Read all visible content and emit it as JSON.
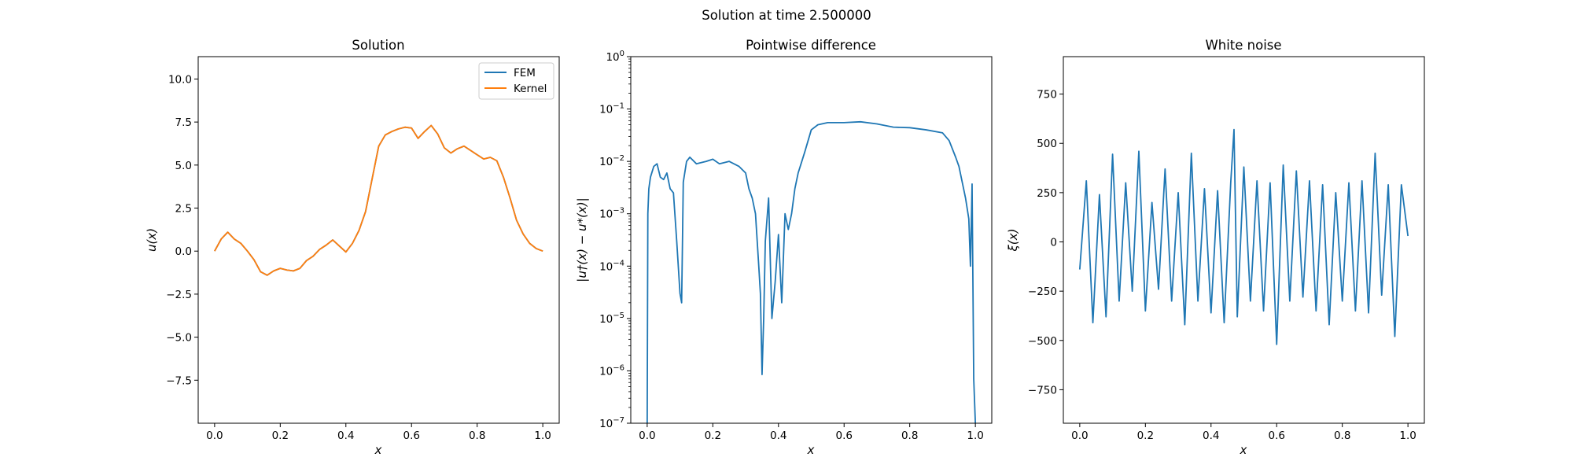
{
  "figure": {
    "suptitle": "Solution at time 2.500000"
  },
  "colors": {
    "fem": "#1f77b4",
    "kernel": "#ff7f0e",
    "series": "#1f77b4",
    "axes": "#000000",
    "background": "#ffffff"
  },
  "chart_data": [
    {
      "type": "line",
      "title": "Solution",
      "xlabel": "x",
      "ylabel": "u(x)",
      "xlim": [
        -0.05,
        1.05
      ],
      "ylim": [
        -10,
        11.3
      ],
      "grid": false,
      "legend_position": "top-right",
      "xticks": [
        0.0,
        0.2,
        0.4,
        0.6,
        0.8,
        1.0
      ],
      "xtick_labels": [
        "0.0",
        "0.2",
        "0.4",
        "0.6",
        "0.8",
        "1.0"
      ],
      "yticks": [
        -7.5,
        -5.0,
        -2.5,
        0.0,
        2.5,
        5.0,
        7.5,
        10.0
      ],
      "ytick_labels": [
        "−7.5",
        "−5.0",
        "−2.5",
        "0.0",
        "2.5",
        "5.0",
        "7.5",
        "10.0"
      ],
      "series": [
        {
          "name": "FEM",
          "color": "#1f77b4",
          "x": [
            0.0,
            0.02,
            0.04,
            0.06,
            0.08,
            0.1,
            0.12,
            0.14,
            0.16,
            0.18,
            0.2,
            0.22,
            0.24,
            0.26,
            0.28,
            0.3,
            0.32,
            0.34,
            0.36,
            0.38,
            0.4,
            0.42,
            0.44,
            0.46,
            0.48,
            0.5,
            0.52,
            0.54,
            0.56,
            0.58,
            0.6,
            0.62,
            0.64,
            0.66,
            0.68,
            0.7,
            0.72,
            0.74,
            0.76,
            0.78,
            0.8,
            0.82,
            0.84,
            0.86,
            0.88,
            0.9,
            0.92,
            0.94,
            0.96,
            0.98,
            1.0
          ],
          "values": [
            0.0,
            0.7,
            1.1,
            0.7,
            0.45,
            0.0,
            -0.5,
            -1.2,
            -1.4,
            -1.15,
            -1.0,
            -1.1,
            -1.15,
            -1.0,
            -0.55,
            -0.3,
            0.1,
            0.35,
            0.65,
            0.3,
            -0.05,
            0.45,
            1.2,
            2.3,
            4.2,
            6.1,
            6.75,
            6.95,
            7.1,
            7.2,
            7.15,
            6.55,
            6.95,
            7.3,
            6.8,
            6.0,
            5.7,
            5.95,
            6.1,
            5.85,
            5.6,
            5.35,
            5.45,
            5.25,
            4.3,
            3.1,
            1.8,
            1.0,
            0.45,
            0.15,
            0.0
          ]
        },
        {
          "name": "Kernel",
          "color": "#ff7f0e",
          "x": [
            0.0,
            0.02,
            0.04,
            0.06,
            0.08,
            0.1,
            0.12,
            0.14,
            0.16,
            0.18,
            0.2,
            0.22,
            0.24,
            0.26,
            0.28,
            0.3,
            0.32,
            0.34,
            0.36,
            0.38,
            0.4,
            0.42,
            0.44,
            0.46,
            0.48,
            0.5,
            0.52,
            0.54,
            0.56,
            0.58,
            0.6,
            0.62,
            0.64,
            0.66,
            0.68,
            0.7,
            0.72,
            0.74,
            0.76,
            0.78,
            0.8,
            0.82,
            0.84,
            0.86,
            0.88,
            0.9,
            0.92,
            0.94,
            0.96,
            0.98,
            1.0
          ],
          "values": [
            0.0,
            0.7,
            1.1,
            0.7,
            0.45,
            0.0,
            -0.5,
            -1.2,
            -1.4,
            -1.15,
            -1.0,
            -1.1,
            -1.15,
            -1.0,
            -0.55,
            -0.3,
            0.1,
            0.35,
            0.65,
            0.3,
            -0.05,
            0.45,
            1.2,
            2.3,
            4.2,
            6.1,
            6.75,
            6.95,
            7.1,
            7.2,
            7.15,
            6.55,
            6.95,
            7.3,
            6.8,
            6.0,
            5.7,
            5.95,
            6.1,
            5.85,
            5.6,
            5.35,
            5.45,
            5.25,
            4.3,
            3.1,
            1.8,
            1.0,
            0.45,
            0.15,
            0.0
          ]
        }
      ]
    },
    {
      "type": "line",
      "title": "Pointwise difference",
      "xlabel": "x",
      "ylabel": "|u†(x) − u*(x)|",
      "yscale": "log",
      "xlim": [
        -0.05,
        1.05
      ],
      "ylim": [
        1e-07,
        1
      ],
      "grid": false,
      "xticks": [
        0.0,
        0.2,
        0.4,
        0.6,
        0.8,
        1.0
      ],
      "xtick_labels": [
        "0.0",
        "0.2",
        "0.4",
        "0.6",
        "0.8",
        "1.0"
      ],
      "yticks": [
        1e-07,
        1e-06,
        1e-05,
        0.0001,
        0.001,
        0.01,
        0.1,
        1
      ],
      "ytick_labels": [
        {
          "base": "10",
          "exp": "−7"
        },
        {
          "base": "10",
          "exp": "−6"
        },
        {
          "base": "10",
          "exp": "−5"
        },
        {
          "base": "10",
          "exp": "−4"
        },
        {
          "base": "10",
          "exp": "−3"
        },
        {
          "base": "10",
          "exp": "−2"
        },
        {
          "base": "10",
          "exp": "−1"
        },
        {
          "base": "10",
          "exp": "0"
        }
      ],
      "series": [
        {
          "color": "#1f77b4",
          "description_of_shape_ranges": null,
          "x": [
            0.0,
            0.002,
            0.005,
            0.01,
            0.02,
            0.03,
            0.04,
            0.05,
            0.06,
            0.07,
            0.08,
            0.09,
            0.1,
            0.105,
            0.11,
            0.12,
            0.13,
            0.15,
            0.18,
            0.2,
            0.22,
            0.25,
            0.28,
            0.3,
            0.31,
            0.32,
            0.33,
            0.34,
            0.345,
            0.35,
            0.355,
            0.36,
            0.37,
            0.38,
            0.39,
            0.4,
            0.41,
            0.42,
            0.43,
            0.44,
            0.45,
            0.46,
            0.48,
            0.5,
            0.52,
            0.55,
            0.6,
            0.65,
            0.7,
            0.75,
            0.8,
            0.85,
            0.9,
            0.92,
            0.94,
            0.95,
            0.96,
            0.97,
            0.98,
            0.985,
            0.99,
            0.995,
            1.0
          ],
          "values": [
            1e-07,
            0.001,
            0.003,
            0.005,
            0.008,
            0.009,
            0.005,
            0.0045,
            0.006,
            0.003,
            0.0025,
            0.0003,
            3e-05,
            2e-05,
            0.004,
            0.01,
            0.012,
            0.009,
            0.01,
            0.011,
            0.009,
            0.01,
            0.008,
            0.006,
            0.003,
            0.002,
            0.001,
            0.0001,
            3e-05,
            8.5e-07,
            1e-05,
            0.0003,
            0.002,
            1e-05,
            5e-05,
            0.0004,
            2e-05,
            0.001,
            0.0005,
            0.001,
            0.003,
            0.006,
            0.015,
            0.04,
            0.05,
            0.055,
            0.055,
            0.057,
            0.052,
            0.045,
            0.044,
            0.04,
            0.035,
            0.025,
            0.012,
            0.008,
            0.004,
            0.002,
            0.0008,
            0.0001,
            0.0037,
            7e-07,
            1e-07
          ]
        }
      ]
    },
    {
      "type": "line",
      "title": "White noise",
      "xlabel": "x",
      "ylabel": "ξ(x)",
      "xlim": [
        -0.05,
        1.05
      ],
      "ylim": [
        -920,
        940
      ],
      "grid": false,
      "xticks": [
        0.0,
        0.2,
        0.4,
        0.6,
        0.8,
        1.0
      ],
      "xtick_labels": [
        "0.0",
        "0.2",
        "0.4",
        "0.6",
        "0.8",
        "1.0"
      ],
      "yticks": [
        -750,
        -500,
        -250,
        0,
        250,
        500,
        750
      ],
      "ytick_labels": [
        "−750",
        "−500",
        "−250",
        "0",
        "250",
        "500",
        "750"
      ],
      "series": [
        {
          "color": "#1f77b4",
          "x": [
            0.0,
            0.02,
            0.04,
            0.06,
            0.08,
            0.1,
            0.12,
            0.14,
            0.16,
            0.18,
            0.2,
            0.22,
            0.24,
            0.26,
            0.28,
            0.3,
            0.32,
            0.34,
            0.36,
            0.38,
            0.4,
            0.42,
            0.44,
            0.46,
            0.47,
            0.48,
            0.5,
            0.52,
            0.54,
            0.56,
            0.58,
            0.6,
            0.62,
            0.64,
            0.66,
            0.68,
            0.7,
            0.72,
            0.74,
            0.76,
            0.78,
            0.8,
            0.82,
            0.84,
            0.86,
            0.88,
            0.9,
            0.92,
            0.94,
            0.96,
            0.98,
            1.0
          ],
          "values": [
            -140,
            310,
            -410,
            240,
            -380,
            445,
            -300,
            300,
            -250,
            460,
            -350,
            200,
            -240,
            370,
            -300,
            250,
            -420,
            450,
            -300,
            270,
            -360,
            260,
            -410,
            300,
            570,
            -380,
            380,
            -300,
            310,
            -350,
            300,
            -520,
            390,
            -300,
            360,
            -280,
            310,
            -350,
            290,
            -420,
            250,
            -300,
            300,
            -350,
            310,
            -360,
            450,
            -270,
            290,
            -480,
            290,
            30
          ]
        }
      ]
    }
  ]
}
